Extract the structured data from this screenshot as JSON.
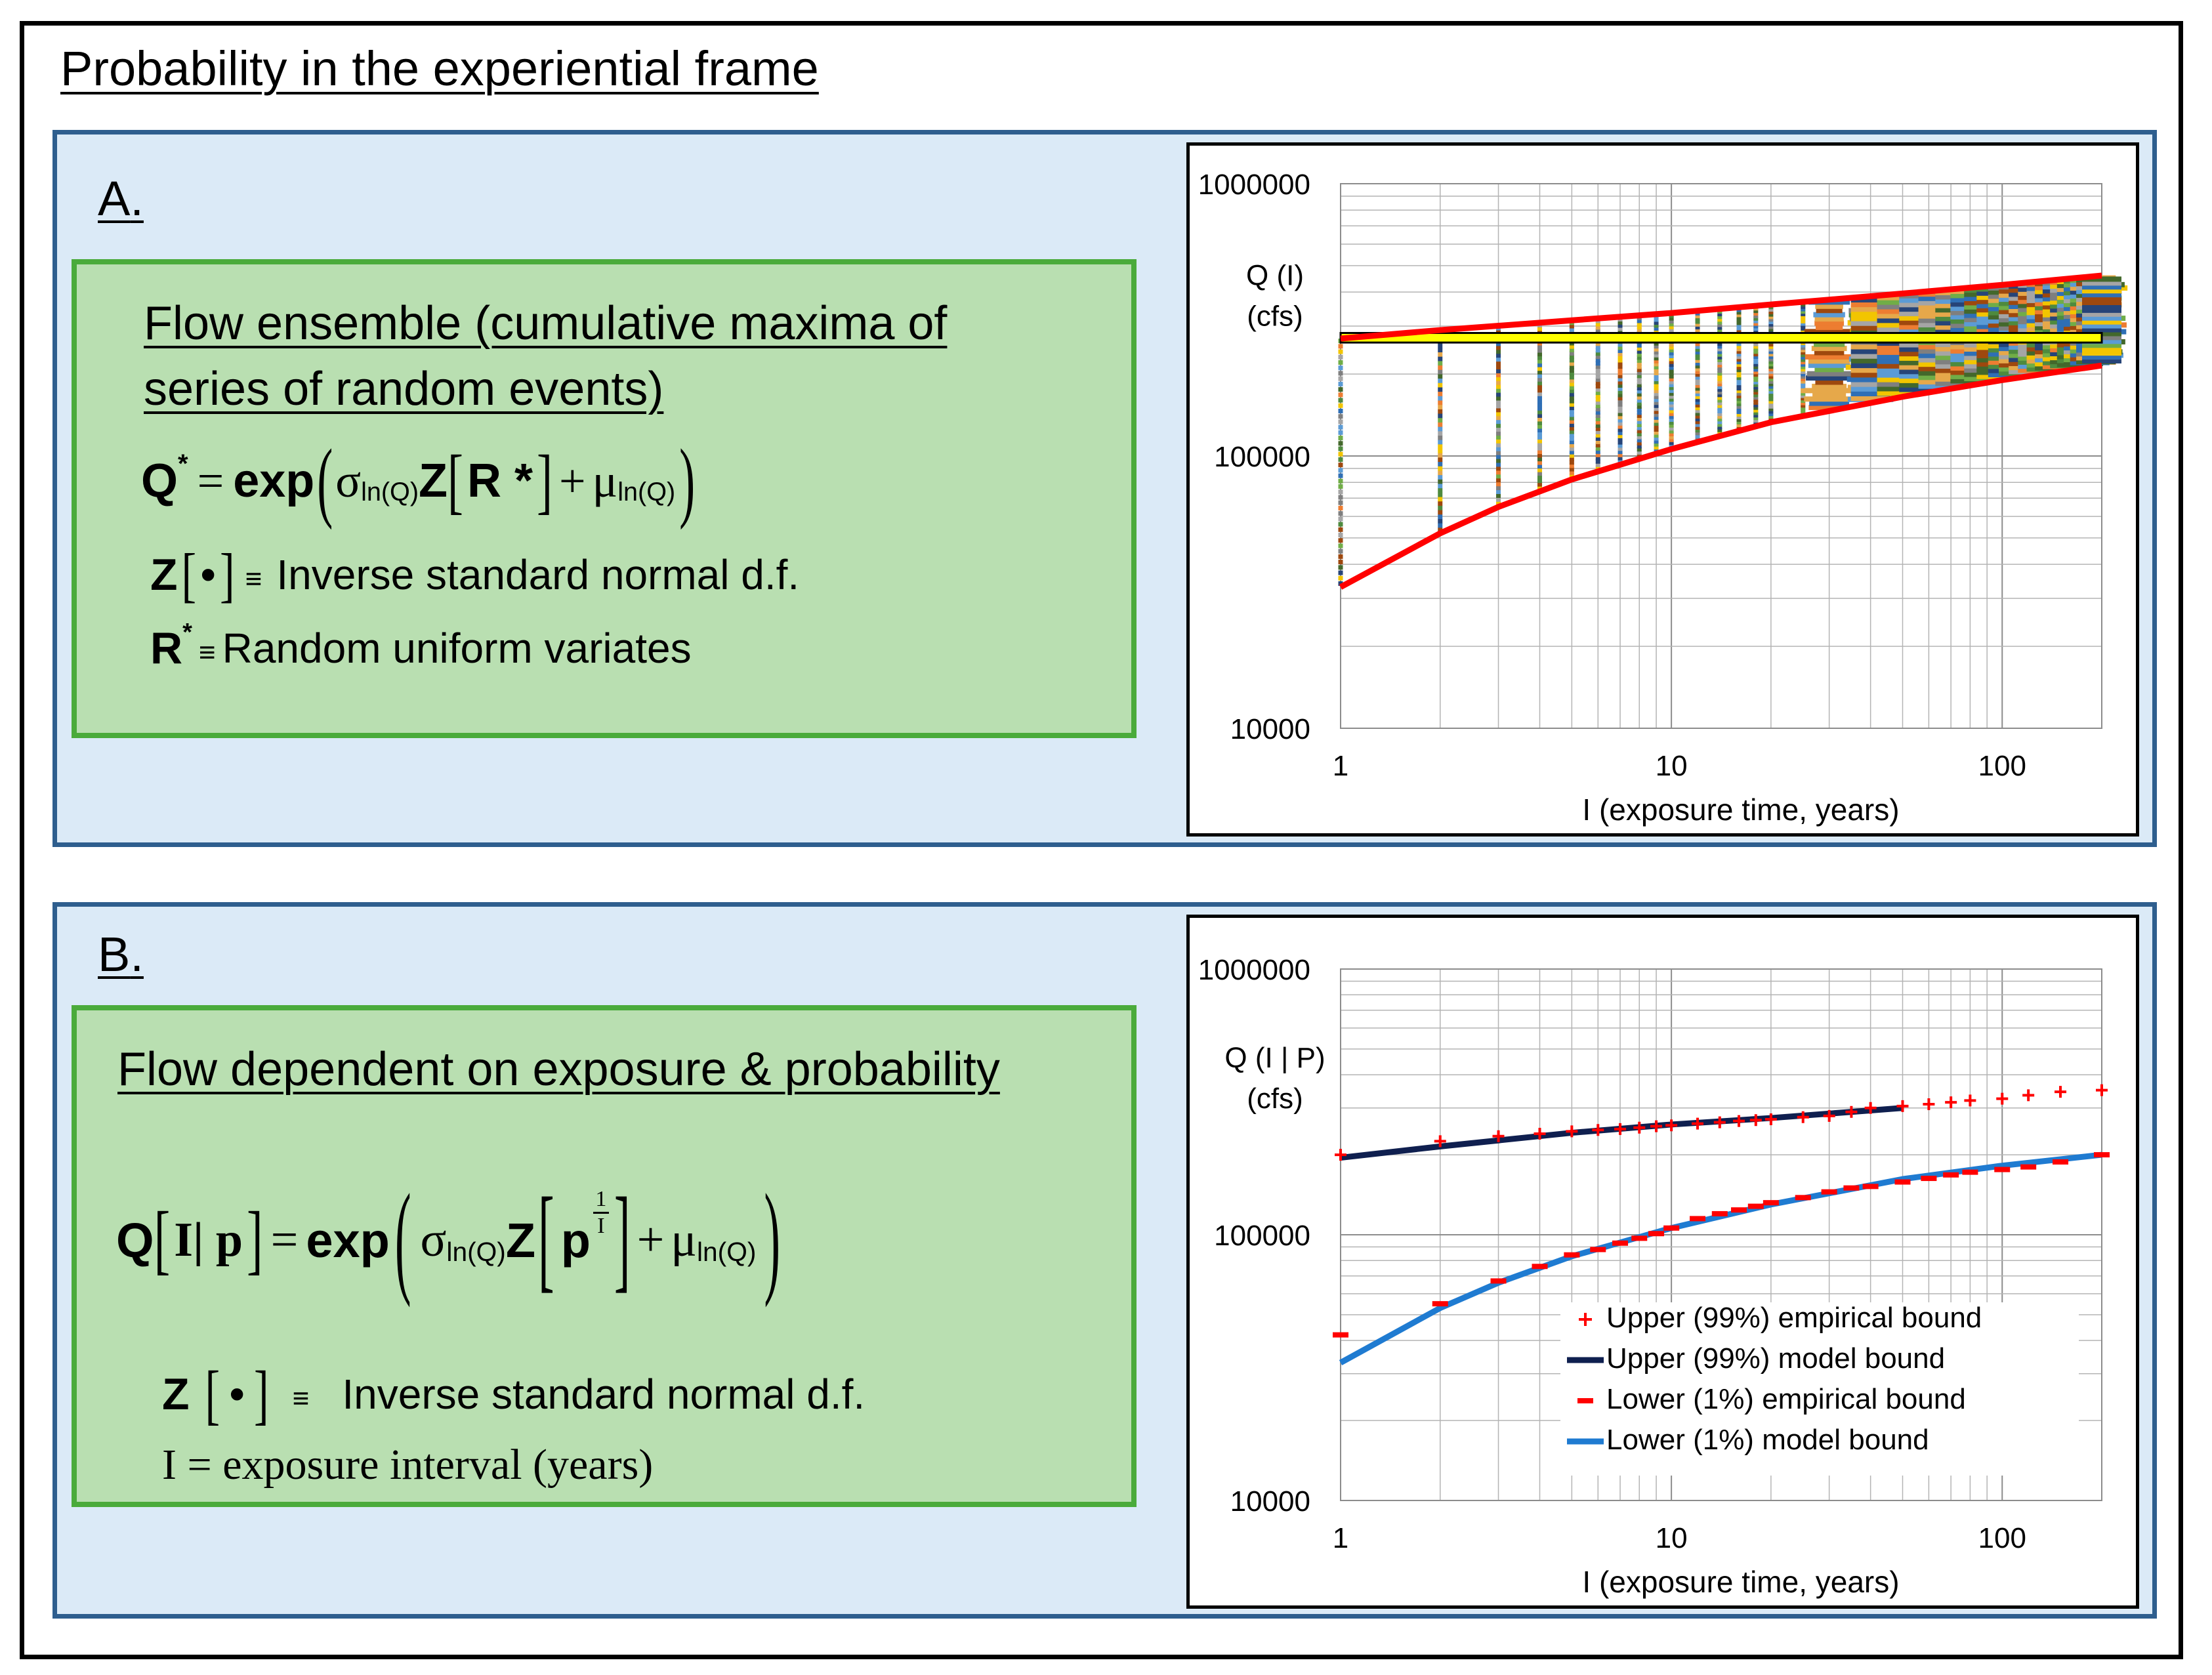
{
  "page": {
    "title": "Probability in the experiential frame"
  },
  "panel_a": {
    "label": "A",
    "box_title_line1": "Flow ensemble (cumulative maxima of",
    "box_title_line2": "series of random events)",
    "eq_Q": "Q",
    "eq_star": "*",
    "eq_equals": "=",
    "eq_exp": "exp",
    "eq_sigma": "σ",
    "eq_sub_lnQ": "ln(Q)",
    "eq_Z": "Z",
    "eq_Rstar": "R *",
    "eq_plus": "+",
    "eq_mu": "μ",
    "z_def_symbol": "Z",
    "z_def_dot": "•",
    "equiv": "≡",
    "z_def_text": "Inverse standard normal d.f.",
    "r_def_symbol": "R",
    "r_def_star": "*",
    "r_def_text": "Random uniform variates"
  },
  "panel_b": {
    "label": "B",
    "box_title": "Flow dependent on exposure & probability",
    "eq_Q": "Q",
    "eq_Ip": "I| p",
    "eq_equals": "=",
    "eq_exp": "exp",
    "eq_sigma": "σ",
    "eq_sub_lnQ": "ln(Q)",
    "eq_Z": "Z",
    "eq_p": "p",
    "eq_exp_num": "1",
    "eq_exp_den": "I",
    "eq_plus": "+",
    "eq_mu": "μ",
    "z_def_symbol": "Z",
    "z_def_dot": "•",
    "equiv": "≡",
    "z_def_text": "Inverse standard normal d.f.",
    "i_def_text": "I = exposure interval (years)"
  },
  "chart_data": [
    {
      "type": "scatter",
      "title": "",
      "xlabel": "I (exposure time, years)",
      "ylabel": [
        "Q (I)",
        "(cfs)"
      ],
      "x_scale": "log",
      "y_scale": "log",
      "xlim": [
        1,
        200
      ],
      "ylim": [
        10000,
        1000000
      ],
      "x_ticks": [
        1,
        10,
        100
      ],
      "x_tick_labels": [
        "1",
        "10",
        "100"
      ],
      "y_ticks": [
        10000,
        100000,
        1000000
      ],
      "y_tick_labels": [
        "10000",
        "100000",
        "1000000"
      ],
      "grid": true,
      "colors": [
        "#e6a84a",
        "#2f6fb5",
        "#7f7f7f",
        "#f2c500",
        "#4e8a3e",
        "#5b9bd5",
        "#ed7d31",
        "#264478",
        "#9e480e",
        "#a5a5a5",
        "#70ad47",
        "#43682b"
      ],
      "ensemble": {
        "description_values": "cumulative maxima of annual random flows; one series per realization",
        "x_values": [
          1,
          2,
          3,
          4,
          5,
          6,
          7,
          8,
          9,
          10,
          12,
          14,
          16,
          18,
          20,
          25,
          30,
          40,
          50,
          60,
          80,
          100,
          150,
          200
        ],
        "y_range_at_x1": [
          30000,
          340000
        ],
        "y_range_at_x10": [
          110000,
          330000
        ],
        "y_range_at_x200": [
          175000,
          440000
        ]
      },
      "series": [
        {
          "role": "upper bound",
          "color": "#ff0000",
          "x": [
            1,
            2,
            5,
            10,
            20,
            50,
            100,
            200
          ],
          "y": [
            270000,
            290000,
            315000,
            335000,
            360000,
            395000,
            425000,
            460000
          ]
        },
        {
          "role": "lower bound",
          "color": "#ff0000",
          "x": [
            1,
            2,
            3,
            5,
            10,
            20,
            50,
            100,
            200
          ],
          "y": [
            33000,
            52000,
            65000,
            82000,
            106000,
            133000,
            165000,
            190000,
            215000
          ]
        }
      ],
      "highlight_band": {
        "y": [
          261000,
          283000
        ],
        "color": "#ffff00"
      }
    },
    {
      "type": "scatter",
      "title": "",
      "xlabel": "I (exposure time, years)",
      "ylabel": [
        "Q (I | P)",
        "(cfs)"
      ],
      "x_scale": "log",
      "y_scale": "log",
      "xlim": [
        1,
        200
      ],
      "ylim": [
        10000,
        1000000
      ],
      "x_ticks": [
        1,
        10,
        100
      ],
      "x_tick_labels": [
        "1",
        "10",
        "100"
      ],
      "y_ticks": [
        10000,
        100000,
        1000000
      ],
      "y_tick_labels": [
        "10000",
        "100000",
        "1000000"
      ],
      "grid": true,
      "legend_position": "bottom-right",
      "series": [
        {
          "name": "Upper (99%) empirical bound",
          "marker": "+",
          "color": "#ff0000",
          "x": [
            1,
            2,
            3,
            4,
            5,
            6,
            7,
            8,
            9,
            10,
            12,
            14,
            16,
            18,
            20,
            25,
            30,
            35,
            40,
            50,
            60,
            70,
            80,
            100,
            120,
            150,
            200
          ],
          "y": [
            200000,
            225000,
            235000,
            240000,
            245000,
            248000,
            250000,
            253000,
            256000,
            258000,
            262000,
            265000,
            268000,
            270000,
            272000,
            277000,
            280000,
            290000,
            300000,
            305000,
            310000,
            315000,
            320000,
            325000,
            335000,
            345000,
            350000
          ]
        },
        {
          "name": "Upper (99%) model bound",
          "marker": "line",
          "color": "#0f1f4f",
          "x": [
            1,
            2,
            5,
            10,
            20,
            50
          ],
          "y": [
            195000,
            215000,
            242000,
            260000,
            275000,
            300000
          ]
        },
        {
          "name": "Lower (1%) empirical bound",
          "marker": "-",
          "color": "#ff0000",
          "x": [
            1,
            2,
            3,
            4,
            5,
            6,
            7,
            8,
            9,
            10,
            12,
            14,
            16,
            18,
            20,
            25,
            30,
            35,
            40,
            50,
            60,
            70,
            80,
            100,
            120,
            150,
            200
          ],
          "y": [
            42000,
            55000,
            67000,
            76000,
            84000,
            88000,
            93000,
            97000,
            101000,
            106000,
            115000,
            120000,
            124000,
            128000,
            132000,
            138000,
            145000,
            150000,
            152000,
            158000,
            163000,
            168000,
            172000,
            176000,
            180000,
            188000,
            200000
          ]
        },
        {
          "name": "Lower (1%) model bound",
          "marker": "line",
          "color": "#1f7bd1",
          "x": [
            1,
            2,
            3,
            5,
            10,
            20,
            50,
            100,
            200
          ],
          "y": [
            33000,
            53000,
            66000,
            83000,
            106000,
            130000,
            162000,
            182000,
            200000
          ]
        }
      ]
    }
  ]
}
